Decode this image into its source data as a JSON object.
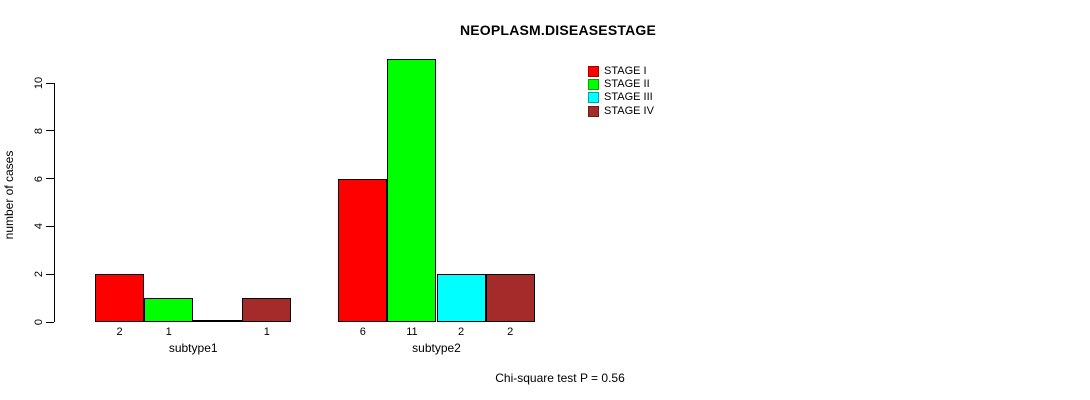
{
  "title": "NEOPLASM.DISEASESTAGE",
  "y_axis_label": "number of cases",
  "footer_note": "Chi-square test P = 0.56",
  "chart_data": {
    "type": "bar",
    "title": "NEOPLASM.DISEASESTAGE",
    "xlabel": "",
    "ylabel": "number of cases",
    "categories": [
      "subtype1",
      "subtype2"
    ],
    "series": [
      {
        "name": "STAGE I",
        "color": "#FF0000",
        "values": [
          2,
          6
        ]
      },
      {
        "name": "STAGE II",
        "color": "#00FF00",
        "values": [
          1,
          11
        ]
      },
      {
        "name": "STAGE III",
        "color": "#00FFFF",
        "values": [
          0,
          2
        ]
      },
      {
        "name": "STAGE IV",
        "color": "#A52A2A",
        "values": [
          1,
          2
        ]
      }
    ],
    "bar_value_labels": [
      [
        "2",
        "1",
        "",
        "1"
      ],
      [
        "6",
        "11",
        "2",
        "2"
      ]
    ],
    "yticks": [
      0,
      2,
      4,
      6,
      8,
      10
    ],
    "ylim": [
      0,
      11
    ],
    "grid": false,
    "legend_position": "top-right",
    "annotation": "Chi-square test P = 0.56"
  }
}
